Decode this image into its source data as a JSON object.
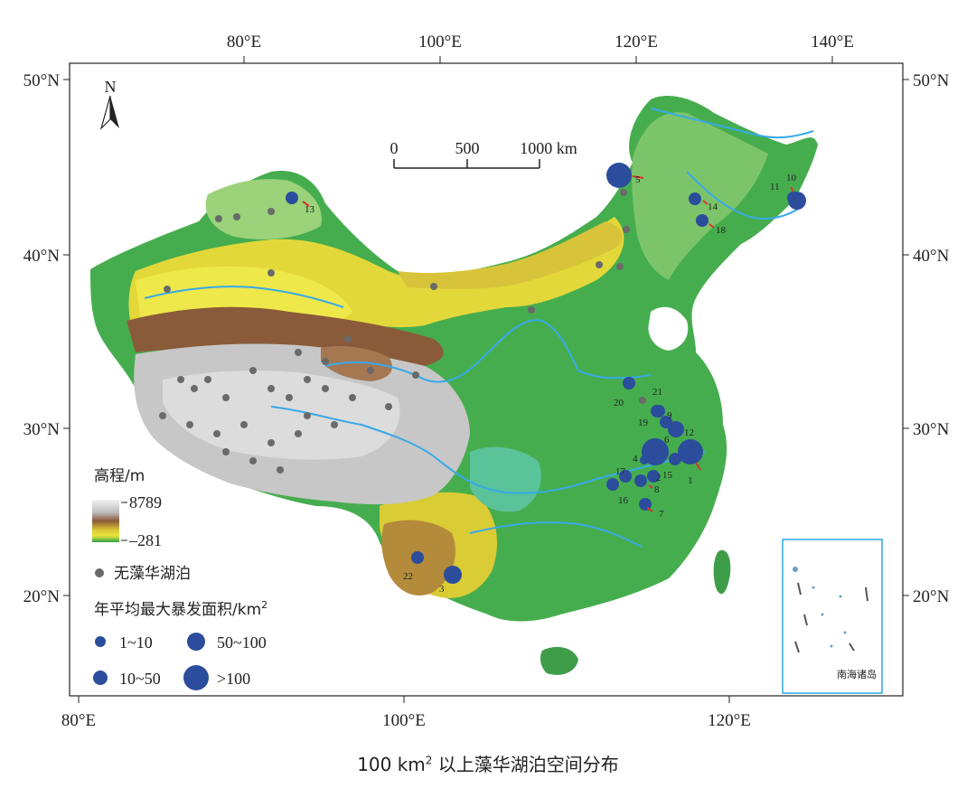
{
  "caption": {
    "pre": "100 km",
    "sup": "2",
    "post": " 以上藻华湖泊空间分布"
  },
  "axes": {
    "top_lon": [
      "80°E",
      "100°E",
      "120°E",
      "140°E"
    ],
    "bottom_lon": [
      "80°E",
      "100°E",
      "120°E"
    ],
    "left_lat": [
      "50°N",
      "40°N",
      "30°N",
      "20°N"
    ],
    "right_lat": [
      "50°N",
      "40°N",
      "30°N",
      "20°N"
    ]
  },
  "north_arrow": {
    "label": "N",
    "icon": "north-arrow-icon"
  },
  "scale_bar": {
    "ticks": [
      "0",
      "500",
      "1000 km"
    ]
  },
  "inset": {
    "label": "南海诸岛"
  },
  "legend": {
    "elevation_title": "高程/m",
    "elev_max": "8789",
    "elev_min": "–281",
    "no_bloom_label": "无藻华湖泊",
    "area_title_pre": "年平均最大暴发面积/km",
    "area_title_sup": "2",
    "size_classes": [
      "1~10",
      "50~100",
      "10~50",
      ">100"
    ]
  },
  "colors": {
    "bloom_lake": "#2b4d9c",
    "no_bloom_lake": "#6a6a6a",
    "leader_line": "#d93030",
    "river": "#38a9e8",
    "inset_frame": "#2aa7e0",
    "frame": "#222222"
  },
  "bloom_lakes": [
    {
      "id": "1",
      "size": ">100"
    },
    {
      "id": "2",
      "size": "10~50"
    },
    {
      "id": "3",
      "size": "50~100"
    },
    {
      "id": "4",
      "size": "1~10"
    },
    {
      "id": "5",
      "size": ">100"
    },
    {
      "id": "6",
      "size": ">100"
    },
    {
      "id": "7",
      "size": "10~50"
    },
    {
      "id": "8",
      "size": "10~50"
    },
    {
      "id": "9",
      "size": "10~50"
    },
    {
      "id": "10",
      "size": "10~50"
    },
    {
      "id": "11",
      "size": "50~100"
    },
    {
      "id": "12",
      "size": "50~100"
    },
    {
      "id": "13",
      "size": "10~50"
    },
    {
      "id": "14",
      "size": "10~50"
    },
    {
      "id": "15",
      "size": "10~50"
    },
    {
      "id": "16",
      "size": "10~50"
    },
    {
      "id": "17",
      "size": "10~50"
    },
    {
      "id": "18",
      "size": "10~50"
    },
    {
      "id": "19",
      "size": "10~50"
    },
    {
      "id": "20",
      "size": "10~50"
    },
    {
      "id": "21",
      "size": "10~50"
    },
    {
      "id": "22",
      "size": "10~50"
    }
  ]
}
